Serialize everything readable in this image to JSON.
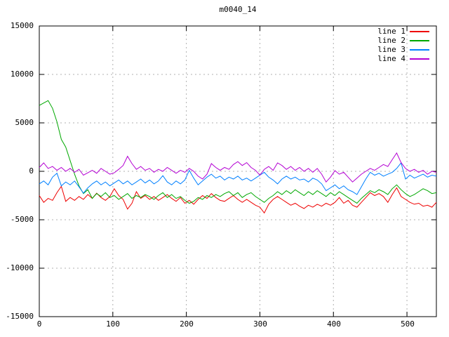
{
  "title": "m0040_14",
  "axes": {
    "y_tick_labels": [
      "15000",
      "10000",
      "5000",
      "0",
      "-5000",
      "-10000",
      "-15000"
    ],
    "x_tick_labels": [
      "0",
      "100",
      "200",
      "300",
      "400",
      "500"
    ]
  },
  "colors": {
    "border": "#000000",
    "grid": "#b0b0b0",
    "background": "#ffffff"
  },
  "chart_data": {
    "type": "line",
    "title": "m0040_14",
    "xlabel": "",
    "ylabel": "",
    "xlim": [
      0,
      540
    ],
    "ylim": [
      -15000,
      15000
    ],
    "x_ticks": [
      0,
      100,
      200,
      300,
      400,
      500
    ],
    "y_ticks": [
      -15000,
      -10000,
      -5000,
      0,
      5000,
      10000,
      15000
    ],
    "grid": "dashed gray at every major tick, ticks mirrored inward on all four borders",
    "legend_position": "top-right inside plot, no box",
    "x_start": 0,
    "x_step": 6,
    "series": [
      {
        "name": "line 1",
        "color": "#ee0000",
        "values": [
          -2500,
          -3200,
          -2800,
          -3000,
          -2200,
          -1550,
          -3100,
          -2700,
          -3000,
          -2600,
          -2900,
          -2400,
          -2800,
          -2250,
          -2700,
          -3000,
          -2600,
          -1800,
          -2500,
          -2900,
          -3900,
          -3300,
          -2100,
          -2800,
          -2500,
          -2900,
          -2600,
          -3000,
          -2700,
          -2400,
          -2800,
          -3100,
          -2700,
          -3300,
          -3000,
          -3400,
          -2900,
          -2500,
          -2800,
          -2300,
          -2700,
          -3000,
          -3100,
          -2800,
          -2500,
          -2900,
          -3200,
          -2900,
          -3200,
          -3500,
          -3700,
          -4300,
          -3400,
          -2900,
          -2600,
          -2900,
          -3200,
          -3500,
          -3300,
          -3600,
          -3840,
          -3500,
          -3700,
          -3400,
          -3600,
          -3300,
          -3500,
          -3200,
          -2700,
          -3300,
          -3000,
          -3500,
          -3700,
          -3200,
          -2700,
          -2200,
          -2500,
          -2300,
          -2600,
          -3200,
          -2400,
          -1700,
          -2600,
          -2900,
          -3200,
          -3400,
          -3300,
          -3600,
          -3500,
          -3700,
          -3200
        ]
      },
      {
        "name": "line 2",
        "color": "#00a800",
        "values": [
          6800,
          7050,
          7300,
          6500,
          5100,
          3300,
          2500,
          1100,
          -300,
          -1500,
          -2300,
          -1900,
          -2800,
          -2300,
          -2600,
          -2200,
          -2700,
          -2500,
          -2900,
          -2600,
          -2300,
          -2800,
          -2500,
          -2700,
          -2400,
          -2600,
          -2900,
          -2500,
          -2200,
          -2700,
          -2400,
          -2800,
          -2600,
          -3000,
          -3300,
          -3100,
          -2700,
          -2900,
          -2500,
          -2700,
          -2400,
          -2600,
          -2300,
          -2100,
          -2500,
          -2200,
          -2700,
          -2400,
          -2200,
          -2600,
          -2900,
          -3200,
          -2800,
          -2500,
          -2100,
          -2400,
          -2000,
          -2300,
          -1900,
          -2200,
          -2500,
          -2100,
          -2400,
          -2000,
          -2300,
          -2600,
          -2200,
          -2500,
          -2100,
          -2400,
          -2700,
          -3000,
          -3300,
          -2800,
          -2400,
          -2000,
          -2200,
          -1900,
          -2100,
          -2400,
          -1800,
          -1400,
          -1900,
          -2300,
          -2600,
          -2400,
          -2100,
          -1800,
          -2000,
          -2300,
          -2200
        ]
      },
      {
        "name": "line 3",
        "color": "#0080ff",
        "values": [
          -1300,
          -1000,
          -1400,
          -600,
          -200,
          -1500,
          -1100,
          -1400,
          -1000,
          -1600,
          -2250,
          -1700,
          -1300,
          -1000,
          -1400,
          -1100,
          -1500,
          -1200,
          -900,
          -1300,
          -1000,
          -1400,
          -1100,
          -800,
          -1200,
          -900,
          -1300,
          -1000,
          -450,
          -1100,
          -1400,
          -1000,
          -1300,
          -900,
          100,
          -700,
          -1400,
          -1000,
          -600,
          -300,
          -700,
          -500,
          -900,
          -600,
          -800,
          -500,
          -900,
          -700,
          -1000,
          -700,
          -400,
          -100,
          -600,
          -900,
          -1300,
          -800,
          -500,
          -800,
          -600,
          -900,
          -800,
          -1100,
          -700,
          -900,
          -1300,
          -2000,
          -1700,
          -1400,
          -1800,
          -1500,
          -1900,
          -2100,
          -2400,
          -1600,
          -800,
          -100,
          -400,
          -200,
          -500,
          -300,
          -100,
          300,
          870,
          -800,
          -400,
          -700,
          -500,
          -300,
          -600,
          -400,
          -500
        ]
      },
      {
        "name": "line 4",
        "color": "#b400d3",
        "values": [
          400,
          870,
          300,
          500,
          100,
          400,
          0,
          300,
          -100,
          200,
          -400,
          -150,
          100,
          -200,
          300,
          0,
          -300,
          -150,
          200,
          600,
          1550,
          800,
          200,
          500,
          100,
          300,
          -100,
          200,
          0,
          400,
          100,
          -200,
          100,
          -100,
          300,
          0,
          -500,
          -800,
          -300,
          800,
          400,
          100,
          400,
          200,
          700,
          1000,
          600,
          900,
          400,
          100,
          -400,
          200,
          500,
          100,
          870,
          600,
          200,
          500,
          100,
          400,
          0,
          300,
          -100,
          290,
          -300,
          -1100,
          -600,
          70,
          -300,
          -100,
          -600,
          -1100,
          -700,
          -300,
          0,
          300,
          100,
          400,
          700,
          500,
          1200,
          1890,
          900,
          300,
          0,
          200,
          -100,
          100,
          -300,
          0,
          -100
        ]
      }
    ]
  }
}
